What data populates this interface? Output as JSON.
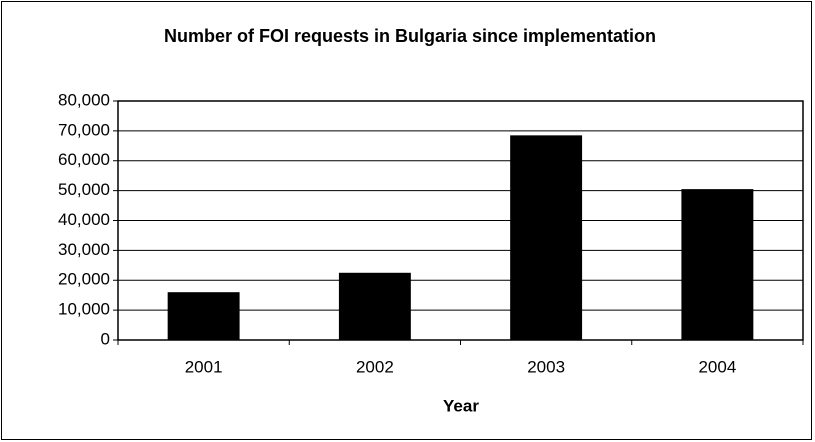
{
  "chart_data": {
    "type": "bar",
    "title": "Number of FOI requests in Bulgaria since implementation",
    "x_label": "Year",
    "categories": [
      "2001",
      "2002",
      "2003",
      "2004"
    ],
    "values": [
      16000,
      22500,
      68500,
      50500
    ],
    "color": "#000000",
    "ylim": [
      0,
      80000
    ],
    "yticks": [
      0,
      {
        "value": 10000,
        "label": "10,000"
      },
      {
        "value": 20000,
        "label": "20,000"
      },
      {
        "value": 30000,
        "label": "30,000"
      },
      {
        "value": 40000,
        "label": "40,000"
      },
      {
        "value": 50000,
        "label": "50,000"
      },
      {
        "value": 60000,
        "label": "60,000"
      },
      {
        "value": 70000,
        "label": "70,000"
      },
      {
        "value": 80000,
        "label": "80,000"
      }
    ],
    "grid": true
  }
}
